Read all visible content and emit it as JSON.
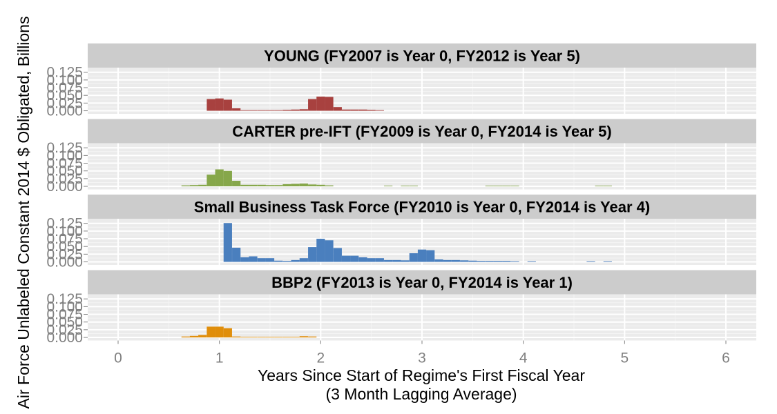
{
  "chart_data": {
    "type": "bar",
    "ylabel": "Air Force Unlabeled Constant 2014 $ Obligated, Billions",
    "xlabel": "Years Since Start of Regime's First Fiscal Year",
    "xlabel_sub": "(3 Month Lagging Average)",
    "xlim": [
      -0.3,
      6.3
    ],
    "ylim": [
      -0.01,
      0.14
    ],
    "x_ticks": [
      0,
      1,
      2,
      3,
      4,
      5,
      6
    ],
    "x_tick_labels": [
      "0",
      "1",
      "2",
      "3",
      "4",
      "5",
      "6"
    ],
    "y_ticks": [
      0,
      0.025,
      0.05,
      0.075,
      0.1,
      0.125
    ],
    "y_tick_labels": [
      "0.000",
      "0.025",
      "0.050",
      "0.075",
      "0.100",
      "0.125"
    ],
    "bin_width": 0.0833,
    "grid": true,
    "legend": "none",
    "panels": [
      {
        "title": "YOUNG (FY2007 is Year 0, FY2012 is Year 5)",
        "color": "#A8413F",
        "x": [
          0.917,
          1.0,
          1.083,
          1.167,
          1.25,
          1.333,
          1.417,
          1.5,
          1.583,
          1.667,
          1.75,
          1.833,
          1.917,
          2.0,
          2.083,
          2.167,
          2.25,
          2.333,
          2.417,
          2.5,
          2.583
        ],
        "values": [
          0.038,
          0.04,
          0.036,
          0.008,
          0.002,
          0.002,
          0.002,
          0.002,
          0.002,
          0.003,
          0.004,
          0.005,
          0.038,
          0.046,
          0.045,
          0.012,
          0.004,
          0.004,
          0.004,
          0.003,
          0.002
        ]
      },
      {
        "title": "CARTER pre-IFT (FY2009 is Year 0, FY2014 is Year 5)",
        "color": "#86A74A",
        "x": [
          0.667,
          0.75,
          0.833,
          0.917,
          1.0,
          1.083,
          1.167,
          1.25,
          1.333,
          1.417,
          1.5,
          1.583,
          1.667,
          1.75,
          1.833,
          1.917,
          2.0,
          2.083,
          2.667,
          2.833,
          2.917,
          3.667,
          3.75,
          3.833,
          3.917,
          4.75,
          4.833
        ],
        "values": [
          0.003,
          0.004,
          0.005,
          0.038,
          0.055,
          0.05,
          0.018,
          0.005,
          0.005,
          0.005,
          0.004,
          0.004,
          0.007,
          0.008,
          0.009,
          0.006,
          0.005,
          0.003,
          0.002,
          0.002,
          0.002,
          0.002,
          0.002,
          0.002,
          0.002,
          0.002,
          0.002
        ]
      },
      {
        "title": "Small Business Task Force (FY2010 is Year 0, FY2014 is Year 4)",
        "color": "#4A7FBE",
        "x": [
          1.083,
          1.167,
          1.25,
          1.333,
          1.417,
          1.5,
          1.583,
          1.667,
          1.75,
          1.833,
          1.917,
          2.0,
          2.083,
          2.167,
          2.25,
          2.333,
          2.417,
          2.5,
          2.583,
          2.667,
          2.75,
          2.833,
          2.917,
          3.0,
          3.083,
          3.167,
          3.25,
          3.333,
          3.417,
          3.5,
          3.583,
          3.667,
          3.75,
          3.833,
          3.917,
          4.083,
          4.667,
          4.833
        ],
        "values": [
          0.126,
          0.046,
          0.015,
          0.018,
          0.012,
          0.012,
          0.004,
          0.003,
          0.006,
          0.012,
          0.048,
          0.075,
          0.07,
          0.045,
          0.02,
          0.02,
          0.015,
          0.012,
          0.012,
          0.006,
          0.006,
          0.005,
          0.028,
          0.04,
          0.038,
          0.008,
          0.006,
          0.006,
          0.005,
          0.004,
          0.003,
          0.003,
          0.003,
          0.003,
          0.002,
          0.002,
          0.002,
          0.002
        ]
      },
      {
        "title": "BBP2 (FY2013 is Year 0, FY2014 is Year 1)",
        "color": "#E08E0B",
        "x": [
          0.667,
          0.75,
          0.833,
          0.917,
          1.0,
          1.083,
          1.167,
          1.25,
          1.333,
          1.417,
          1.5,
          1.583,
          1.667,
          1.75,
          1.833,
          1.917
        ],
        "values": [
          0.003,
          0.005,
          0.008,
          0.035,
          0.035,
          0.03,
          0.003,
          0.002,
          0.002,
          0.002,
          0.002,
          0.002,
          0.002,
          0.002,
          0.004,
          0.003
        ]
      }
    ]
  }
}
